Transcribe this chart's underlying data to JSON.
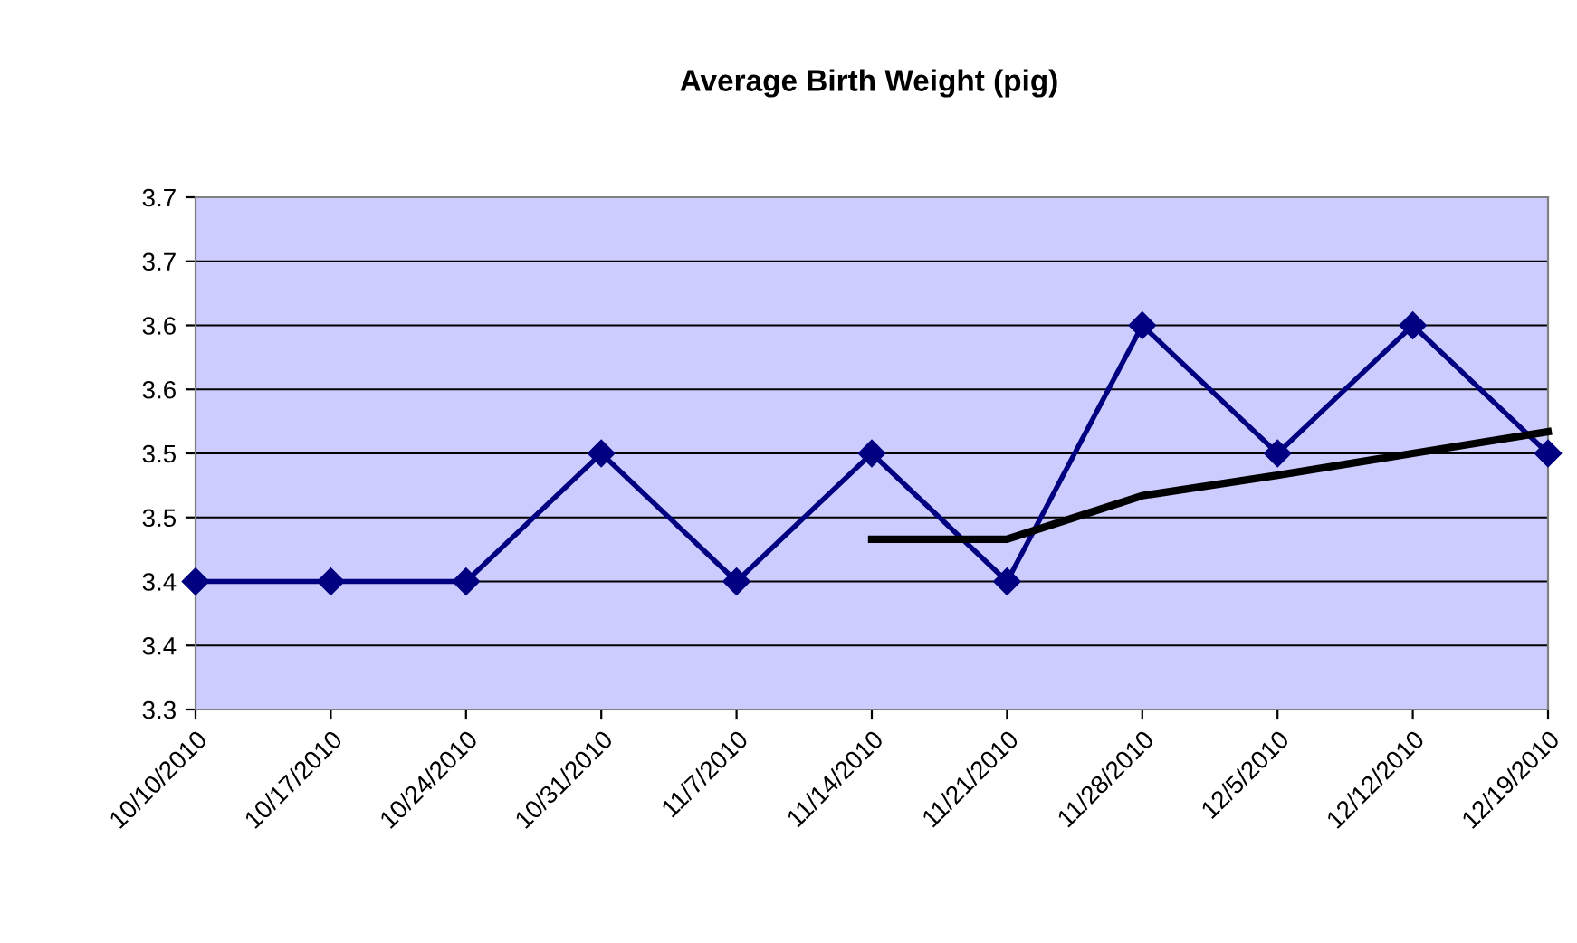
{
  "chart_data": {
    "type": "line",
    "title": "Average Birth Weight (pig)",
    "categories": [
      "10/10/2010",
      "10/17/2010",
      "10/24/2010",
      "10/31/2010",
      "11/7/2010",
      "11/14/2010",
      "11/21/2010",
      "11/28/2010",
      "12/5/2010",
      "12/12/2010",
      "12/19/2010"
    ],
    "series": [
      {
        "color": "#000080",
        "marker": "diamond",
        "values": [
          3.4,
          3.4,
          3.4,
          3.5,
          3.4,
          3.5,
          3.4,
          3.6,
          3.5,
          3.6,
          3.5
        ]
      },
      {
        "color": "#000000",
        "marker": "none",
        "values": [
          null,
          null,
          null,
          null,
          null,
          3.433,
          3.433,
          3.467,
          3.483,
          3.5,
          3.517
        ]
      }
    ],
    "ylim": [
      3.3,
      3.7
    ],
    "yticks": [
      {
        "value": 3.3,
        "label": "3.3"
      },
      {
        "value": 3.35,
        "label": "3.4"
      },
      {
        "value": 3.4,
        "label": "3.4"
      },
      {
        "value": 3.45,
        "label": "3.5"
      },
      {
        "value": 3.5,
        "label": "3.5"
      },
      {
        "value": 3.55,
        "label": "3.6"
      },
      {
        "value": 3.6,
        "label": "3.6"
      },
      {
        "value": 3.65,
        "label": "3.7"
      },
      {
        "value": 3.7,
        "label": "3.7"
      }
    ],
    "grid": "y",
    "legend": false
  }
}
